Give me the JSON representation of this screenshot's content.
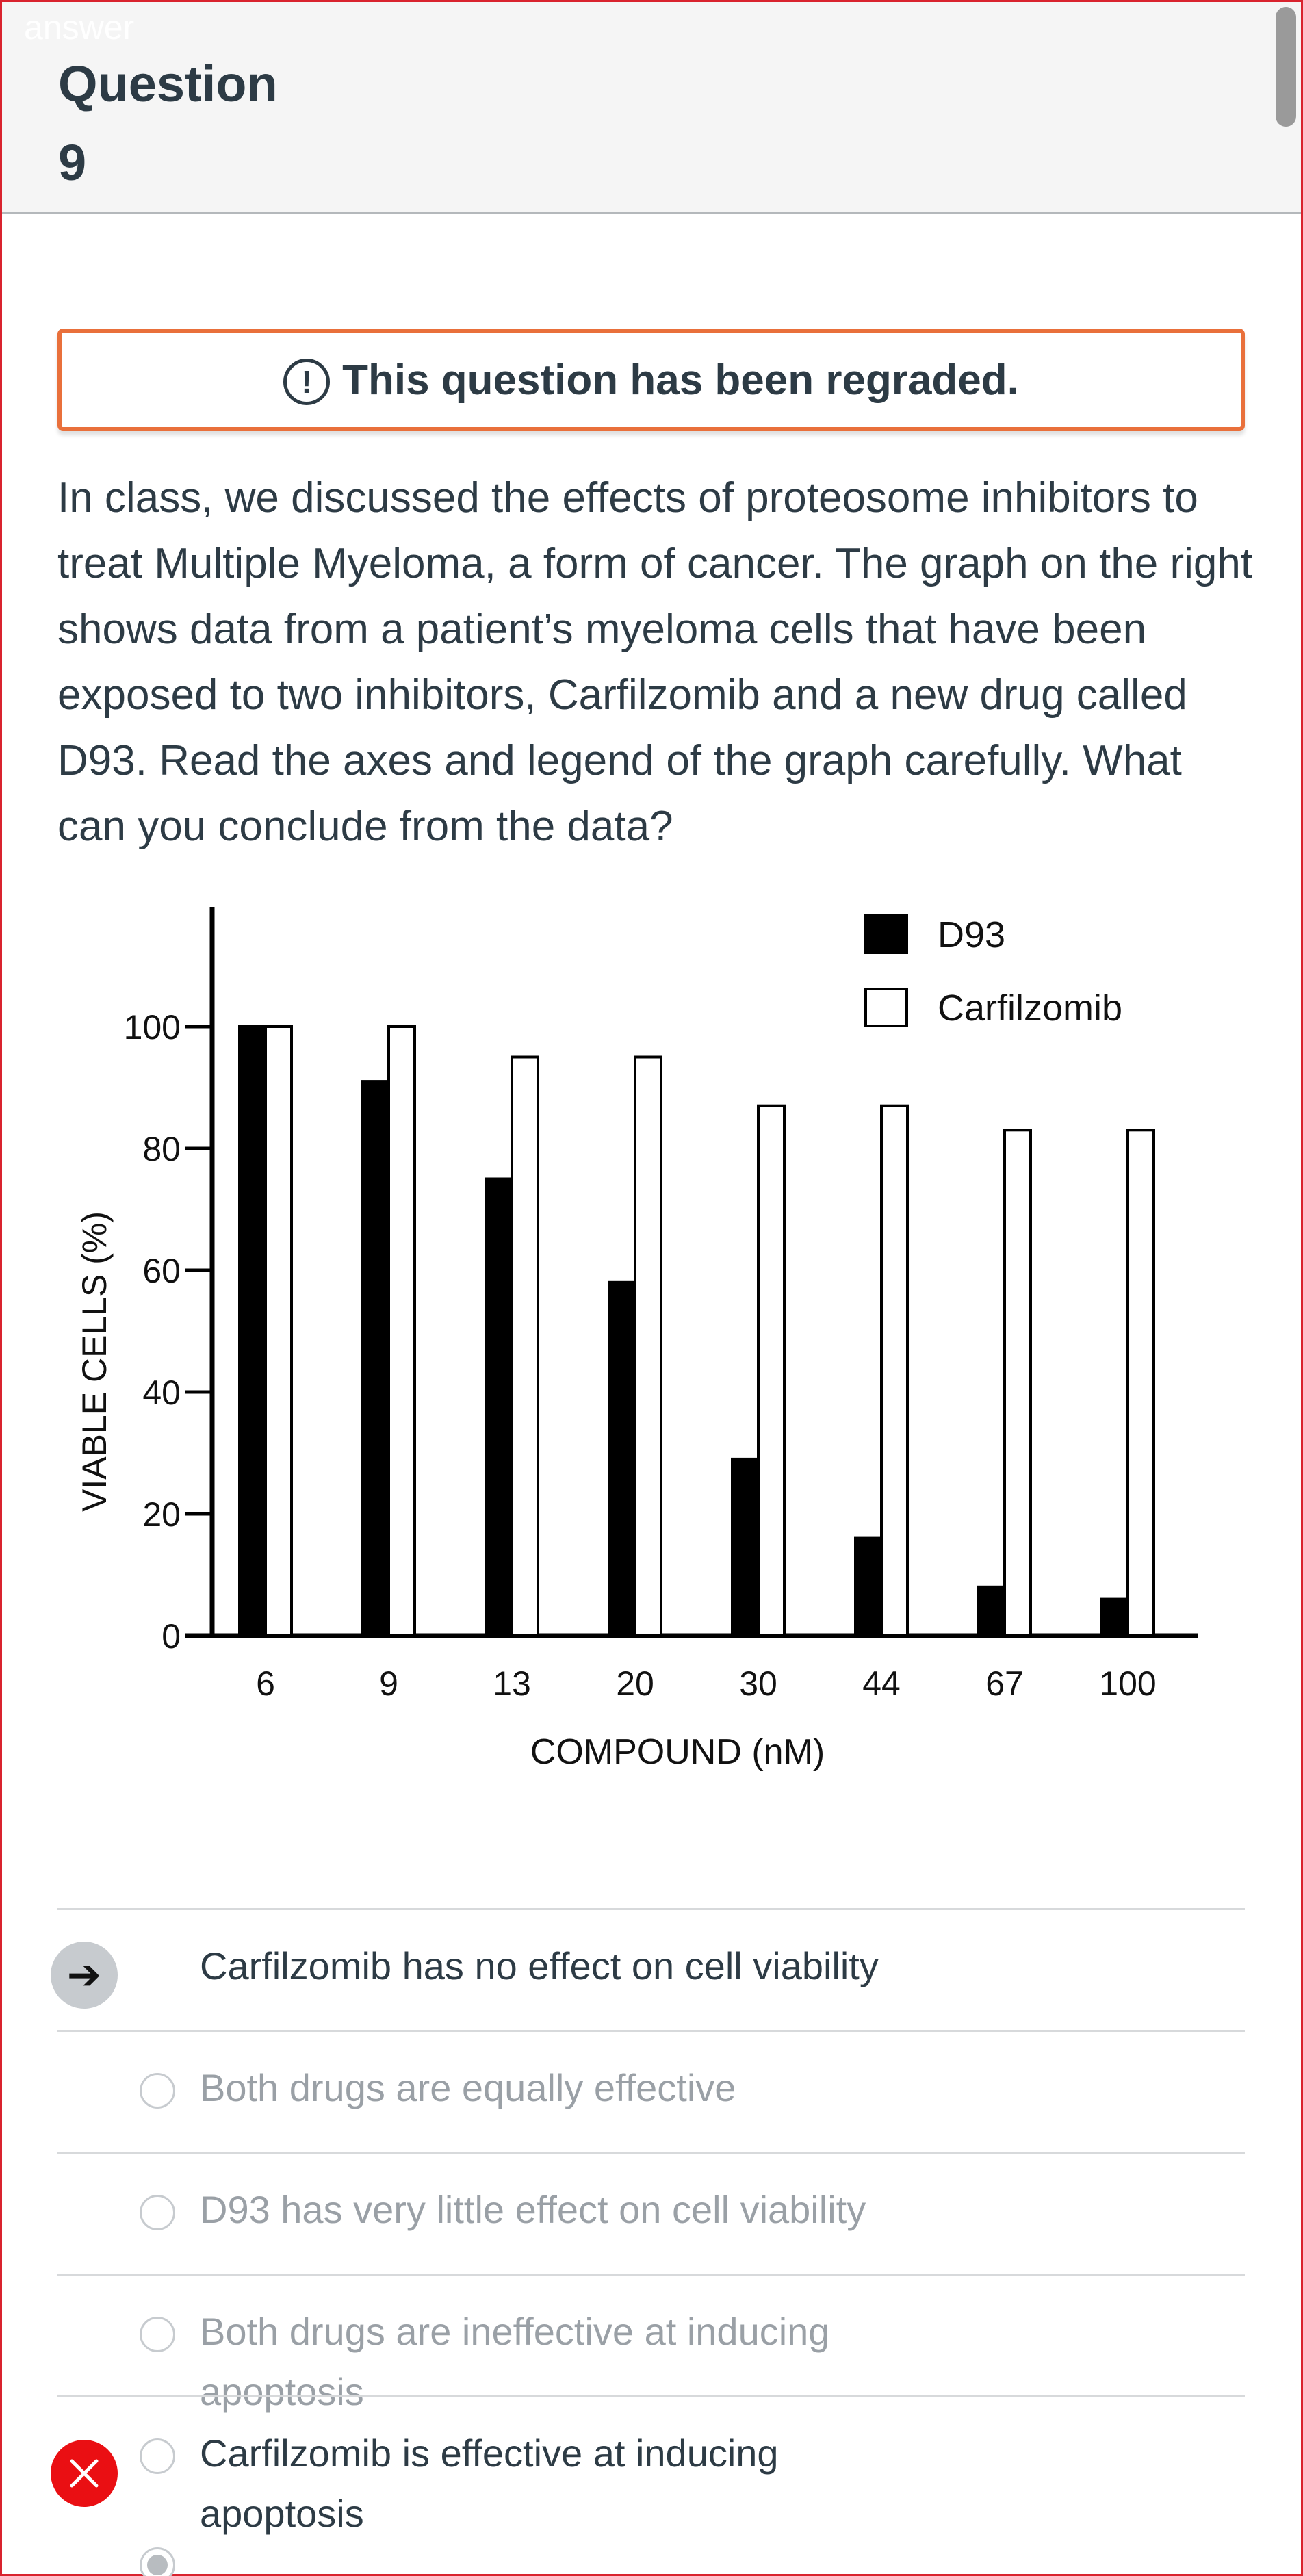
{
  "header": {
    "corner_label": "answer",
    "question_title": "Question 9"
  },
  "regrade_notice": {
    "icon": "exclamation-circle-icon",
    "text": "This question has been regraded."
  },
  "question": {
    "text": "In class, we discussed the effects of proteosome inhibitors to treat Multiple Myeloma, a form of cancer.  The graph on the right shows data from a patient’s myeloma cells that have been exposed to two inhibitors, Carfilzomib and a new drug called D93. Read the axes and legend of the graph carefully. What can you conclude from the data?"
  },
  "chart_data": {
    "type": "bar",
    "categories": [
      "6",
      "9",
      "13",
      "20",
      "30",
      "44",
      "67",
      "100"
    ],
    "series": [
      {
        "name": "D93",
        "color": "#000000",
        "values": [
          100,
          91,
          75,
          58,
          29,
          16,
          8,
          6
        ]
      },
      {
        "name": "Carfilzomib",
        "color": "#ffffff",
        "values": [
          100,
          100,
          95,
          95,
          87,
          87,
          83,
          83
        ]
      }
    ],
    "xlabel": "COMPOUND (nM)",
    "ylabel": "VIABLE CELLS (%)",
    "ylim": [
      0,
      120
    ],
    "yticks": [
      0,
      20,
      40,
      60,
      80,
      100
    ],
    "grid": false,
    "legend": "top-right"
  },
  "answers": [
    {
      "text": "Carfilzomib has no effect on cell viability",
      "state": "selected",
      "marker": "arrow-right-icon"
    },
    {
      "text": "Both drugs are equally effective",
      "state": "unselected"
    },
    {
      "text": "D93 has very little effect on cell viability",
      "state": "unselected"
    },
    {
      "text": "Both drugs are ineffective at inducing apoptosis",
      "state": "unselected"
    },
    {
      "text": "Carfilzomib is effective at inducing apoptosis",
      "state": "incorrect",
      "marker": "close-icon"
    }
  ],
  "colors": {
    "accent_orange": "#e9703b",
    "frame_red": "#d9232e",
    "wrong_red": "#ea0f13",
    "text_dark": "#2d3b45",
    "text_dim": "#9aa0a6"
  }
}
